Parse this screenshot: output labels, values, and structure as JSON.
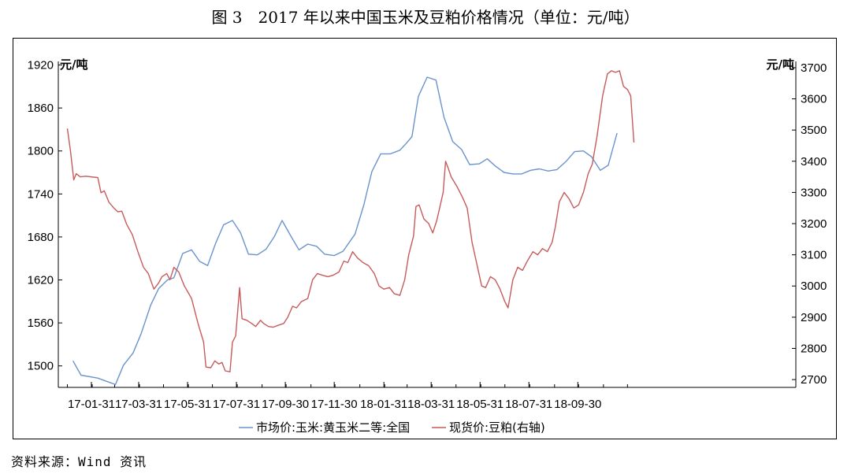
{
  "figure_title": "图 3　2017 年以来中国玉米及豆粕价格情况（单位：元/吨）",
  "source_note": "资料来源：Wind 资讯",
  "chart_data": {
    "type": "line",
    "title": "图 3　2017 年以来中国玉米及豆粕价格情况（单位：元/吨）",
    "left_unit": "元/吨",
    "right_unit": "元/吨",
    "y_left_ticks": [
      1500,
      1560,
      1620,
      1680,
      1740,
      1800,
      1860,
      1920
    ],
    "y_right_ticks": [
      2700,
      2800,
      2900,
      3000,
      3100,
      3200,
      3300,
      3400,
      3500,
      3600,
      3700
    ],
    "ylim_left": [
      1470,
      1925
    ],
    "ylim_right": [
      2675,
      3720
    ],
    "x_range": [
      "2017-01-01",
      "2018-11-07"
    ],
    "x_ticks": [
      {
        "date": "2017-01-31",
        "label": "17-01-31"
      },
      {
        "date": "2017-03-31",
        "label": "17-03-31"
      },
      {
        "date": "2017-05-31",
        "label": "17-05-31"
      },
      {
        "date": "2017-07-31",
        "label": "17-07-31"
      },
      {
        "date": "2017-09-30",
        "label": "17-09-30"
      },
      {
        "date": "2017-11-30",
        "label": "17-11-30"
      },
      {
        "date": "2018-01-31",
        "label": "18-01-31"
      },
      {
        "date": "2018-03-31",
        "label": "18-03-31"
      },
      {
        "date": "2018-05-31",
        "label": "18-05-31"
      },
      {
        "date": "2018-07-31",
        "label": "18-07-31"
      },
      {
        "date": "2018-09-30",
        "label": "18-09-30"
      }
    ],
    "legend_position": "bottom",
    "grid": false,
    "series": [
      {
        "name": "市场价:玉米:黄玉米二等:全国",
        "axis": "left",
        "color": "#6a93cc",
        "points": [
          [
            "2017-01-08",
            1507
          ],
          [
            "2017-01-18",
            1487
          ],
          [
            "2017-02-08",
            1483
          ],
          [
            "2017-02-20",
            1478
          ],
          [
            "2017-03-02",
            1474
          ],
          [
            "2017-03-12",
            1501
          ],
          [
            "2017-03-24",
            1518
          ],
          [
            "2017-04-03",
            1545
          ],
          [
            "2017-04-15",
            1585
          ],
          [
            "2017-04-25",
            1608
          ],
          [
            "2017-05-06",
            1620
          ],
          [
            "2017-05-14",
            1623
          ],
          [
            "2017-05-25",
            1657
          ],
          [
            "2017-06-05",
            1662
          ],
          [
            "2017-06-15",
            1646
          ],
          [
            "2017-06-25",
            1640
          ],
          [
            "2017-07-05",
            1671
          ],
          [
            "2017-07-15",
            1697
          ],
          [
            "2017-07-26",
            1703
          ],
          [
            "2017-08-05",
            1686
          ],
          [
            "2017-08-15",
            1656
          ],
          [
            "2017-08-26",
            1655
          ],
          [
            "2017-09-06",
            1663
          ],
          [
            "2017-09-16",
            1680
          ],
          [
            "2017-09-26",
            1703
          ],
          [
            "2017-10-07",
            1681
          ],
          [
            "2017-10-17",
            1662
          ],
          [
            "2017-10-28",
            1670
          ],
          [
            "2017-11-08",
            1667
          ],
          [
            "2017-11-18",
            1656
          ],
          [
            "2017-11-30",
            1654
          ],
          [
            "2017-12-11",
            1660
          ],
          [
            "2017-12-26",
            1684
          ],
          [
            "2018-01-06",
            1725
          ],
          [
            "2018-01-16",
            1771
          ],
          [
            "2018-01-27",
            1796
          ],
          [
            "2018-02-08",
            1796
          ],
          [
            "2018-02-20",
            1801
          ],
          [
            "2018-03-01",
            1812
          ],
          [
            "2018-03-07",
            1820
          ],
          [
            "2018-03-15",
            1876
          ],
          [
            "2018-03-26",
            1903
          ],
          [
            "2018-04-06",
            1899
          ],
          [
            "2018-04-16",
            1847
          ],
          [
            "2018-04-27",
            1813
          ],
          [
            "2018-05-08",
            1802
          ],
          [
            "2018-05-18",
            1781
          ],
          [
            "2018-05-30",
            1782
          ],
          [
            "2018-06-09",
            1789
          ],
          [
            "2018-06-19",
            1779
          ],
          [
            "2018-06-30",
            1770
          ],
          [
            "2018-07-11",
            1768
          ],
          [
            "2018-07-22",
            1768
          ],
          [
            "2018-08-02",
            1773
          ],
          [
            "2018-08-13",
            1775
          ],
          [
            "2018-08-24",
            1772
          ],
          [
            "2018-09-04",
            1774
          ],
          [
            "2018-09-15",
            1785
          ],
          [
            "2018-09-26",
            1799
          ],
          [
            "2018-10-07",
            1800
          ],
          [
            "2018-10-17",
            1792
          ],
          [
            "2018-10-28",
            1773
          ],
          [
            "2018-11-07",
            1780
          ],
          [
            "2018-11-18",
            1825
          ]
        ]
      },
      {
        "name": "现货价:豆粕(右轴)",
        "axis": "right",
        "color": "#c75b5b",
        "points": [
          [
            "2017-01-01",
            3505
          ],
          [
            "2017-01-05",
            3430
          ],
          [
            "2017-01-09",
            3340
          ],
          [
            "2017-01-12",
            3360
          ],
          [
            "2017-01-17",
            3350
          ],
          [
            "2017-01-24",
            3352
          ],
          [
            "2017-02-03",
            3349
          ],
          [
            "2017-02-08",
            3348
          ],
          [
            "2017-02-12",
            3299
          ],
          [
            "2017-02-16",
            3305
          ],
          [
            "2017-02-22",
            3268
          ],
          [
            "2017-02-28",
            3250
          ],
          [
            "2017-03-05",
            3238
          ],
          [
            "2017-03-10",
            3240
          ],
          [
            "2017-03-16",
            3198
          ],
          [
            "2017-03-23",
            3165
          ],
          [
            "2017-03-30",
            3110
          ],
          [
            "2017-04-06",
            3060
          ],
          [
            "2017-04-12",
            3040
          ],
          [
            "2017-04-19",
            2990
          ],
          [
            "2017-04-25",
            3010
          ],
          [
            "2017-04-29",
            3030
          ],
          [
            "2017-05-05",
            3040
          ],
          [
            "2017-05-09",
            3020
          ],
          [
            "2017-05-14",
            3060
          ],
          [
            "2017-05-20",
            3045
          ],
          [
            "2017-05-27",
            3000
          ],
          [
            "2017-06-05",
            2960
          ],
          [
            "2017-06-13",
            2880
          ],
          [
            "2017-06-20",
            2820
          ],
          [
            "2017-06-23",
            2740
          ],
          [
            "2017-06-29",
            2738
          ],
          [
            "2017-07-04",
            2760
          ],
          [
            "2017-07-09",
            2750
          ],
          [
            "2017-07-13",
            2755
          ],
          [
            "2017-07-17",
            2728
          ],
          [
            "2017-07-23",
            2725
          ],
          [
            "2017-07-26",
            2820
          ],
          [
            "2017-07-30",
            2840
          ],
          [
            "2017-08-04",
            2995
          ],
          [
            "2017-08-07",
            2895
          ],
          [
            "2017-08-13",
            2890
          ],
          [
            "2017-08-19",
            2880
          ],
          [
            "2017-08-24",
            2870
          ],
          [
            "2017-08-30",
            2890
          ],
          [
            "2017-09-03",
            2880
          ],
          [
            "2017-09-09",
            2870
          ],
          [
            "2017-09-15",
            2868
          ],
          [
            "2017-09-22",
            2875
          ],
          [
            "2017-09-28",
            2880
          ],
          [
            "2017-10-03",
            2900
          ],
          [
            "2017-10-09",
            2935
          ],
          [
            "2017-10-14",
            2930
          ],
          [
            "2017-10-20",
            2950
          ],
          [
            "2017-10-28",
            2960
          ],
          [
            "2017-11-03",
            3020
          ],
          [
            "2017-11-09",
            3040
          ],
          [
            "2017-11-15",
            3035
          ],
          [
            "2017-11-22",
            3030
          ],
          [
            "2017-11-29",
            3035
          ],
          [
            "2017-12-06",
            3045
          ],
          [
            "2017-12-12",
            3080
          ],
          [
            "2017-12-17",
            3075
          ],
          [
            "2017-12-23",
            3110
          ],
          [
            "2017-12-29",
            3090
          ],
          [
            "2018-01-05",
            3075
          ],
          [
            "2018-01-12",
            3065
          ],
          [
            "2018-01-19",
            3040
          ],
          [
            "2018-01-25",
            3000
          ],
          [
            "2018-01-31",
            2990
          ],
          [
            "2018-02-07",
            2995
          ],
          [
            "2018-02-13",
            2975
          ],
          [
            "2018-02-20",
            2970
          ],
          [
            "2018-02-26",
            3020
          ],
          [
            "2018-03-03",
            3100
          ],
          [
            "2018-03-09",
            3160
          ],
          [
            "2018-03-12",
            3255
          ],
          [
            "2018-03-16",
            3260
          ],
          [
            "2018-03-22",
            3215
          ],
          [
            "2018-03-28",
            3200
          ],
          [
            "2018-04-02",
            3170
          ],
          [
            "2018-04-07",
            3210
          ],
          [
            "2018-04-11",
            3255
          ],
          [
            "2018-04-15",
            3300
          ],
          [
            "2018-04-18",
            3400
          ],
          [
            "2018-04-21",
            3380
          ],
          [
            "2018-04-25",
            3350
          ],
          [
            "2018-05-02",
            3320
          ],
          [
            "2018-05-09",
            3285
          ],
          [
            "2018-05-15",
            3250
          ],
          [
            "2018-05-21",
            3140
          ],
          [
            "2018-05-27",
            3070
          ],
          [
            "2018-06-02",
            3000
          ],
          [
            "2018-06-07",
            2995
          ],
          [
            "2018-06-13",
            3030
          ],
          [
            "2018-06-19",
            3020
          ],
          [
            "2018-06-25",
            2990
          ],
          [
            "2018-07-01",
            2950
          ],
          [
            "2018-07-05",
            2930
          ],
          [
            "2018-07-11",
            3020
          ],
          [
            "2018-07-17",
            3060
          ],
          [
            "2018-07-23",
            3050
          ],
          [
            "2018-07-29",
            3080
          ],
          [
            "2018-08-05",
            3110
          ],
          [
            "2018-08-11",
            3100
          ],
          [
            "2018-08-17",
            3120
          ],
          [
            "2018-08-23",
            3110
          ],
          [
            "2018-08-29",
            3140
          ],
          [
            "2018-09-02",
            3190
          ],
          [
            "2018-09-07",
            3270
          ],
          [
            "2018-09-13",
            3300
          ],
          [
            "2018-09-19",
            3280
          ],
          [
            "2018-09-25",
            3250
          ],
          [
            "2018-10-01",
            3260
          ],
          [
            "2018-10-07",
            3300
          ],
          [
            "2018-10-13",
            3360
          ],
          [
            "2018-10-18",
            3390
          ],
          [
            "2018-10-24",
            3480
          ],
          [
            "2018-10-31",
            3610
          ],
          [
            "2018-11-06",
            3680
          ],
          [
            "2018-11-11",
            3690
          ],
          [
            "2018-11-16",
            3685
          ],
          [
            "2018-11-21",
            3690
          ],
          [
            "2018-11-26",
            3640
          ],
          [
            "2018-12-01",
            3630
          ],
          [
            "2018-12-05",
            3610
          ],
          [
            "2018-12-09",
            3460
          ]
        ]
      }
    ]
  }
}
